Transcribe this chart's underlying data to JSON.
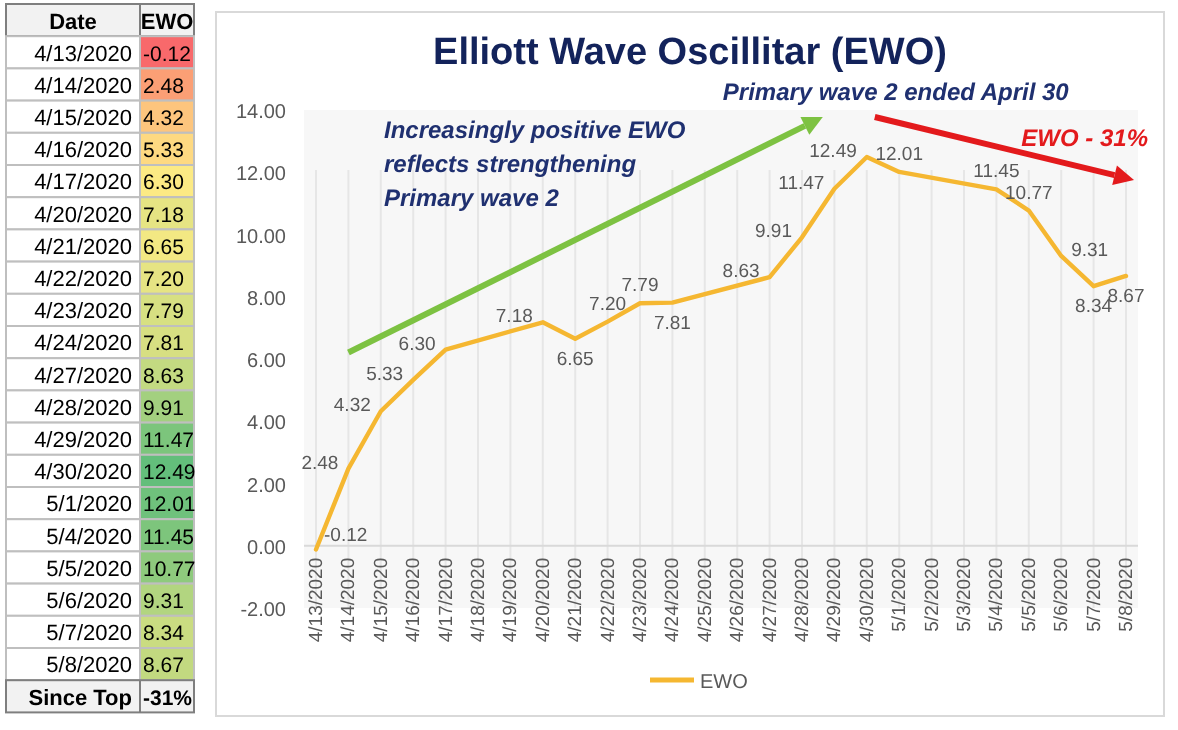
{
  "chart_data": [
    {
      "type": "heatmap",
      "categories": [
        "EWO"
      ],
      "y_categories": [
        "4/13/2020",
        "4/14/2020",
        "4/15/2020",
        "4/16/2020",
        "4/17/2020",
        "4/20/2020",
        "4/21/2020",
        "4/22/2020",
        "4/23/2020",
        "4/24/2020",
        "4/27/2020",
        "4/28/2020",
        "4/29/2020",
        "4/30/2020",
        "5/1/2020",
        "5/4/2020",
        "5/5/2020",
        "5/6/2020",
        "5/7/2020",
        "5/8/2020"
      ],
      "cells": [
        [
          -0.12
        ],
        [
          2.48
        ],
        [
          4.32
        ],
        [
          5.33
        ],
        [
          6.3
        ],
        [
          7.18
        ],
        [
          6.65
        ],
        [
          7.2
        ],
        [
          7.79
        ],
        [
          7.81
        ],
        [
          8.63
        ],
        [
          9.91
        ],
        [
          11.47
        ],
        [
          12.49
        ],
        [
          12.01
        ],
        [
          11.45
        ],
        [
          10.77
        ],
        [
          9.31
        ],
        [
          8.34
        ],
        [
          8.67
        ]
      ],
      "cell_labels": [
        [
          "-0.12"
        ],
        [
          "2.48"
        ],
        [
          "4.32"
        ],
        [
          "5.33"
        ],
        [
          "6.30"
        ],
        [
          "7.18"
        ],
        [
          "6.65"
        ],
        [
          "7.20"
        ],
        [
          "7.79"
        ],
        [
          "7.81"
        ],
        [
          "8.63"
        ],
        [
          "9.91"
        ],
        [
          "11.47"
        ],
        [
          "12.49"
        ],
        [
          "12.01"
        ],
        [
          "11.45"
        ],
        [
          "10.77"
        ],
        [
          "9.31"
        ],
        [
          "8.34"
        ],
        [
          "8.67"
        ]
      ],
      "annotations": [
        "Date",
        "Since Top",
        "-31%"
      ]
    },
    {
      "type": "line",
      "title": "Elliott Wave Oscillitar (EWO)",
      "x": [
        "2020-04-13",
        "2020-04-14",
        "2020-04-15",
        "2020-04-16",
        "2020-04-17",
        "2020-04-20",
        "2020-04-21",
        "2020-04-22",
        "2020-04-23",
        "2020-04-24",
        "2020-04-27",
        "2020-04-28",
        "2020-04-29",
        "2020-04-30",
        "2020-05-01",
        "2020-05-04",
        "2020-05-05",
        "2020-05-06",
        "2020-05-07",
        "2020-05-08"
      ],
      "series": [
        {
          "name": "EWO",
          "color": "#f5b731",
          "values": [
            -0.12,
            2.48,
            4.32,
            5.33,
            6.3,
            7.18,
            6.65,
            7.2,
            7.79,
            7.81,
            8.63,
            9.91,
            11.47,
            12.49,
            12.01,
            11.45,
            10.77,
            9.31,
            8.34,
            8.67
          ]
        }
      ],
      "value_labels": [
        "-0.12",
        "2.48",
        "4.32",
        "5.33",
        "6.30",
        "7.18",
        "6.65",
        "7.20",
        "7.79",
        "7.81",
        "8.63",
        "9.91",
        "11.47",
        "12.49",
        "12.01",
        "11.45",
        "10.77",
        "9.31",
        "8.34",
        "8.67"
      ],
      "xlim": [
        "2020-04-13",
        "2020-05-08"
      ],
      "xticks": [
        {
          "value": "2020-04-13",
          "label": "4/13/2020"
        },
        {
          "value": "2020-04-14",
          "label": "4/14/2020"
        },
        {
          "value": "2020-04-15",
          "label": "4/15/2020"
        },
        {
          "value": "2020-04-16",
          "label": "4/16/2020"
        },
        {
          "value": "2020-04-17",
          "label": "4/17/2020"
        },
        {
          "value": "2020-04-18",
          "label": "4/18/2020"
        },
        {
          "value": "2020-04-19",
          "label": "4/19/2020"
        },
        {
          "value": "2020-04-20",
          "label": "4/20/2020"
        },
        {
          "value": "2020-04-21",
          "label": "4/21/2020"
        },
        {
          "value": "2020-04-22",
          "label": "4/22/2020"
        },
        {
          "value": "2020-04-23",
          "label": "4/23/2020"
        },
        {
          "value": "2020-04-24",
          "label": "4/24/2020"
        },
        {
          "value": "2020-04-25",
          "label": "4/25/2020"
        },
        {
          "value": "2020-04-26",
          "label": "4/26/2020"
        },
        {
          "value": "2020-04-27",
          "label": "4/27/2020"
        },
        {
          "value": "2020-04-28",
          "label": "4/28/2020"
        },
        {
          "value": "2020-04-29",
          "label": "4/29/2020"
        },
        {
          "value": "2020-04-30",
          "label": "4/30/2020"
        },
        {
          "value": "2020-05-01",
          "label": "5/1/2020"
        },
        {
          "value": "2020-05-02",
          "label": "5/2/2020"
        },
        {
          "value": "2020-05-03",
          "label": "5/3/2020"
        },
        {
          "value": "2020-05-04",
          "label": "5/4/2020"
        },
        {
          "value": "2020-05-05",
          "label": "5/5/2020"
        },
        {
          "value": "2020-05-06",
          "label": "5/6/2020"
        },
        {
          "value": "2020-05-07",
          "label": "5/7/2020"
        },
        {
          "value": "2020-05-08",
          "label": "5/8/2020"
        }
      ],
      "ylim": [
        -2,
        14
      ],
      "yticks": [
        {
          "value": -2,
          "label": "-2.00"
        },
        {
          "value": 0,
          "label": "0.00"
        },
        {
          "value": 2,
          "label": "2.00"
        },
        {
          "value": 4,
          "label": "4.00"
        },
        {
          "value": 6,
          "label": "6.00"
        },
        {
          "value": 8,
          "label": "8.00"
        },
        {
          "value": 10,
          "label": "10.00"
        },
        {
          "value": 12,
          "label": "12.00"
        },
        {
          "value": 14,
          "label": "14.00"
        }
      ],
      "grid": "x",
      "legend": "bottom",
      "annotations": [
        "Primary wave 2 ended April 30",
        "Increasingly positive EWO\nreflects strengthening\nPrimary wave 2",
        "EWO - 31%"
      ]
    }
  ]
}
